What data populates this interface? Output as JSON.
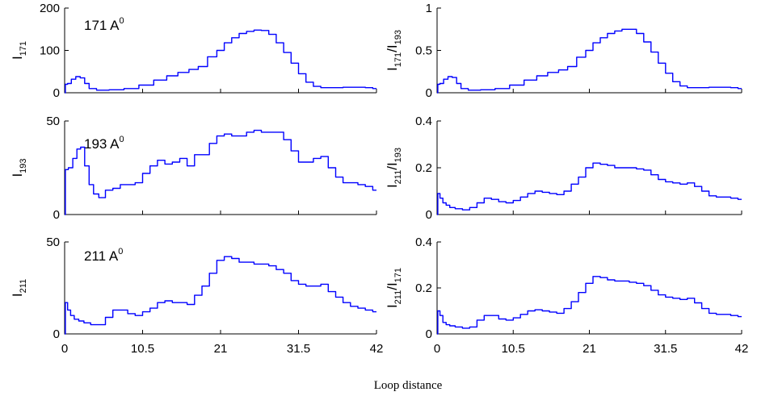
{
  "chart_data": {
    "type": "line",
    "xlabel": "Loop distance",
    "line_color": "#0000ff",
    "axis_color": "#000000",
    "panels": [
      {
        "id": "i171",
        "ylabel": {
          "main": "I",
          "sub": "171"
        },
        "annotation": {
          "text": "171 A",
          "sup": "0"
        },
        "xlim": [
          0,
          42
        ],
        "ylim": [
          0,
          200
        ],
        "xticks": [
          0,
          10.5,
          21,
          31.5,
          42
        ],
        "xtick_labels": [],
        "yticks": [
          0,
          100,
          200
        ],
        "ytick_labels": [
          "0",
          "100",
          "200"
        ],
        "x": [
          0,
          0.2,
          0.6,
          1.2,
          1.8,
          2.4,
          3.0,
          3.6,
          5,
          7,
          9,
          11,
          13,
          14.5,
          16,
          17.5,
          18.5,
          20,
          21,
          22,
          23,
          24,
          25,
          26,
          27,
          28,
          29,
          30,
          31,
          32,
          33,
          34,
          35,
          36,
          37,
          38,
          39,
          40,
          41,
          42
        ],
        "y": [
          0,
          20,
          22,
          32,
          38,
          35,
          22,
          10,
          6,
          7,
          10,
          18,
          30,
          40,
          48,
          55,
          62,
          85,
          100,
          118,
          130,
          140,
          145,
          148,
          147,
          138,
          118,
          95,
          70,
          45,
          25,
          15,
          12,
          12,
          12,
          13,
          13,
          13,
          12,
          10
        ]
      },
      {
        "id": "ratio171_193",
        "ylabel": {
          "main": "I",
          "sub": "171",
          "main2": "/I",
          "sub2": "193"
        },
        "xlim": [
          0,
          42
        ],
        "ylim": [
          0,
          1
        ],
        "xticks": [
          0,
          10.5,
          21,
          31.5,
          42
        ],
        "xtick_labels": [],
        "yticks": [
          0,
          0.5,
          1
        ],
        "ytick_labels": [
          "0",
          "0.5",
          "1"
        ],
        "x": [
          0,
          0.2,
          0.6,
          1.2,
          1.8,
          2.4,
          3.0,
          3.6,
          5,
          7,
          9,
          11,
          13,
          14.5,
          16,
          17.5,
          18.5,
          20,
          21,
          22,
          23,
          24,
          25,
          26,
          27,
          28,
          29,
          30,
          31,
          32,
          33,
          34,
          35,
          36,
          37,
          38,
          39,
          40,
          41,
          42
        ],
        "y": [
          0,
          0.1,
          0.11,
          0.16,
          0.19,
          0.18,
          0.11,
          0.05,
          0.03,
          0.035,
          0.05,
          0.09,
          0.15,
          0.2,
          0.24,
          0.27,
          0.31,
          0.42,
          0.5,
          0.59,
          0.65,
          0.7,
          0.73,
          0.75,
          0.75,
          0.7,
          0.6,
          0.48,
          0.35,
          0.23,
          0.13,
          0.08,
          0.06,
          0.06,
          0.06,
          0.065,
          0.065,
          0.065,
          0.06,
          0.05
        ]
      },
      {
        "id": "i193",
        "ylabel": {
          "main": "I",
          "sub": "193"
        },
        "annotation": {
          "text": "193 A",
          "sup": "0"
        },
        "xlim": [
          0,
          42
        ],
        "ylim": [
          0,
          50
        ],
        "xticks": [
          0,
          10.5,
          21,
          31.5,
          42
        ],
        "xtick_labels": [],
        "yticks": [
          0,
          50
        ],
        "ytick_labels": [
          "0",
          "50"
        ],
        "x": [
          0,
          0.2,
          0.8,
          1.4,
          1.9,
          2.4,
          3.0,
          3.6,
          4.2,
          5,
          6,
          7,
          8,
          9,
          10,
          11,
          12,
          13,
          14,
          15,
          16,
          17,
          18,
          19,
          20,
          21,
          22,
          23,
          24,
          25,
          26,
          27,
          28,
          29,
          30,
          31,
          32,
          33,
          34,
          35,
          36,
          37,
          38,
          39,
          40,
          41,
          42
        ],
        "y": [
          0,
          24,
          25,
          30,
          35,
          36,
          26,
          16,
          11,
          9,
          13,
          14,
          16,
          16,
          17,
          22,
          26,
          29,
          27,
          28,
          30,
          26,
          32,
          32,
          38,
          42,
          43,
          42,
          42,
          44,
          45,
          44,
          44,
          44,
          40,
          34,
          28,
          28,
          30,
          31,
          25,
          20,
          17,
          17,
          16,
          15,
          13
        ]
      },
      {
        "id": "ratio211_193",
        "ylabel": {
          "main": "I",
          "sub": "211",
          "main2": "/I",
          "sub2": "193"
        },
        "xlim": [
          0,
          42
        ],
        "ylim": [
          0,
          0.4
        ],
        "xticks": [
          0,
          10.5,
          21,
          31.5,
          42
        ],
        "xtick_labels": [],
        "yticks": [
          0,
          0.2,
          0.4
        ],
        "ytick_labels": [
          "0",
          "0.2",
          "0.4"
        ],
        "x": [
          0,
          0.2,
          0.6,
          1.0,
          1.5,
          2.0,
          3.0,
          4.0,
          5,
          6,
          7,
          8,
          9,
          10,
          11,
          12,
          13,
          14,
          15,
          16,
          17,
          18,
          19,
          20,
          21,
          22,
          23,
          24,
          25,
          26,
          27,
          28,
          29,
          30,
          31,
          32,
          33,
          34,
          35,
          36,
          37,
          38,
          39,
          40,
          41,
          42
        ],
        "y": [
          0,
          0.09,
          0.07,
          0.05,
          0.04,
          0.03,
          0.025,
          0.02,
          0.03,
          0.05,
          0.07,
          0.065,
          0.055,
          0.05,
          0.06,
          0.075,
          0.09,
          0.1,
          0.095,
          0.09,
          0.085,
          0.1,
          0.13,
          0.16,
          0.2,
          0.22,
          0.215,
          0.21,
          0.2,
          0.2,
          0.2,
          0.195,
          0.19,
          0.17,
          0.15,
          0.14,
          0.135,
          0.13,
          0.135,
          0.12,
          0.1,
          0.08,
          0.075,
          0.075,
          0.07,
          0.065
        ]
      },
      {
        "id": "i211",
        "ylabel": {
          "main": "I",
          "sub": "211"
        },
        "annotation": {
          "text": "211 A",
          "sup": "0"
        },
        "xlim": [
          0,
          42
        ],
        "ylim": [
          0,
          50
        ],
        "xticks": [
          0,
          10.5,
          21,
          31.5,
          42
        ],
        "xtick_labels": [
          "0",
          "10.5",
          "21",
          "31.5",
          "42"
        ],
        "yticks": [
          0,
          50
        ],
        "ytick_labels": [
          "0",
          "50"
        ],
        "x": [
          0,
          0.2,
          0.6,
          1.0,
          1.6,
          2.2,
          3.0,
          4.0,
          5,
          6,
          7,
          8,
          9,
          10,
          11,
          12,
          13,
          14,
          15,
          16,
          17,
          18,
          19,
          20,
          21,
          22,
          23,
          24,
          25,
          26,
          27,
          28,
          29,
          30,
          31,
          32,
          33,
          34,
          35,
          36,
          37,
          38,
          39,
          40,
          41,
          42
        ],
        "y": [
          0,
          17,
          13,
          10,
          8,
          7,
          6,
          5,
          5,
          9,
          13,
          13,
          11,
          10,
          12,
          14,
          17,
          18,
          17,
          17,
          16,
          21,
          26,
          33,
          40,
          42,
          41,
          39,
          39,
          38,
          38,
          37,
          35,
          33,
          29,
          27,
          26,
          26,
          27,
          23,
          20,
          17,
          15,
          14,
          13,
          12
        ]
      },
      {
        "id": "ratio211_171",
        "ylabel": {
          "main": "I",
          "sub": "211",
          "main2": "/I",
          "sub2": "171"
        },
        "xlim": [
          0,
          42
        ],
        "ylim": [
          0,
          0.4
        ],
        "xticks": [
          0,
          10.5,
          21,
          31.5,
          42
        ],
        "xtick_labels": [
          "0",
          "10.5",
          "21",
          "31.5",
          "42"
        ],
        "yticks": [
          0,
          0.2,
          0.4
        ],
        "ytick_labels": [
          "0",
          "0.2",
          "0.4"
        ],
        "x": [
          0,
          0.2,
          0.6,
          1.0,
          1.5,
          2.0,
          3.0,
          4.0,
          5,
          6,
          7,
          8,
          9,
          10,
          11,
          12,
          13,
          14,
          15,
          16,
          17,
          18,
          19,
          20,
          21,
          22,
          23,
          24,
          25,
          26,
          27,
          28,
          29,
          30,
          31,
          32,
          33,
          34,
          35,
          36,
          37,
          38,
          39,
          40,
          41,
          42
        ],
        "y": [
          0,
          0.1,
          0.08,
          0.05,
          0.04,
          0.035,
          0.03,
          0.025,
          0.03,
          0.06,
          0.08,
          0.08,
          0.065,
          0.06,
          0.07,
          0.085,
          0.1,
          0.105,
          0.1,
          0.095,
          0.09,
          0.11,
          0.14,
          0.18,
          0.22,
          0.25,
          0.245,
          0.235,
          0.23,
          0.23,
          0.225,
          0.22,
          0.21,
          0.19,
          0.17,
          0.16,
          0.155,
          0.15,
          0.155,
          0.135,
          0.11,
          0.09,
          0.085,
          0.085,
          0.08,
          0.075
        ]
      }
    ]
  }
}
